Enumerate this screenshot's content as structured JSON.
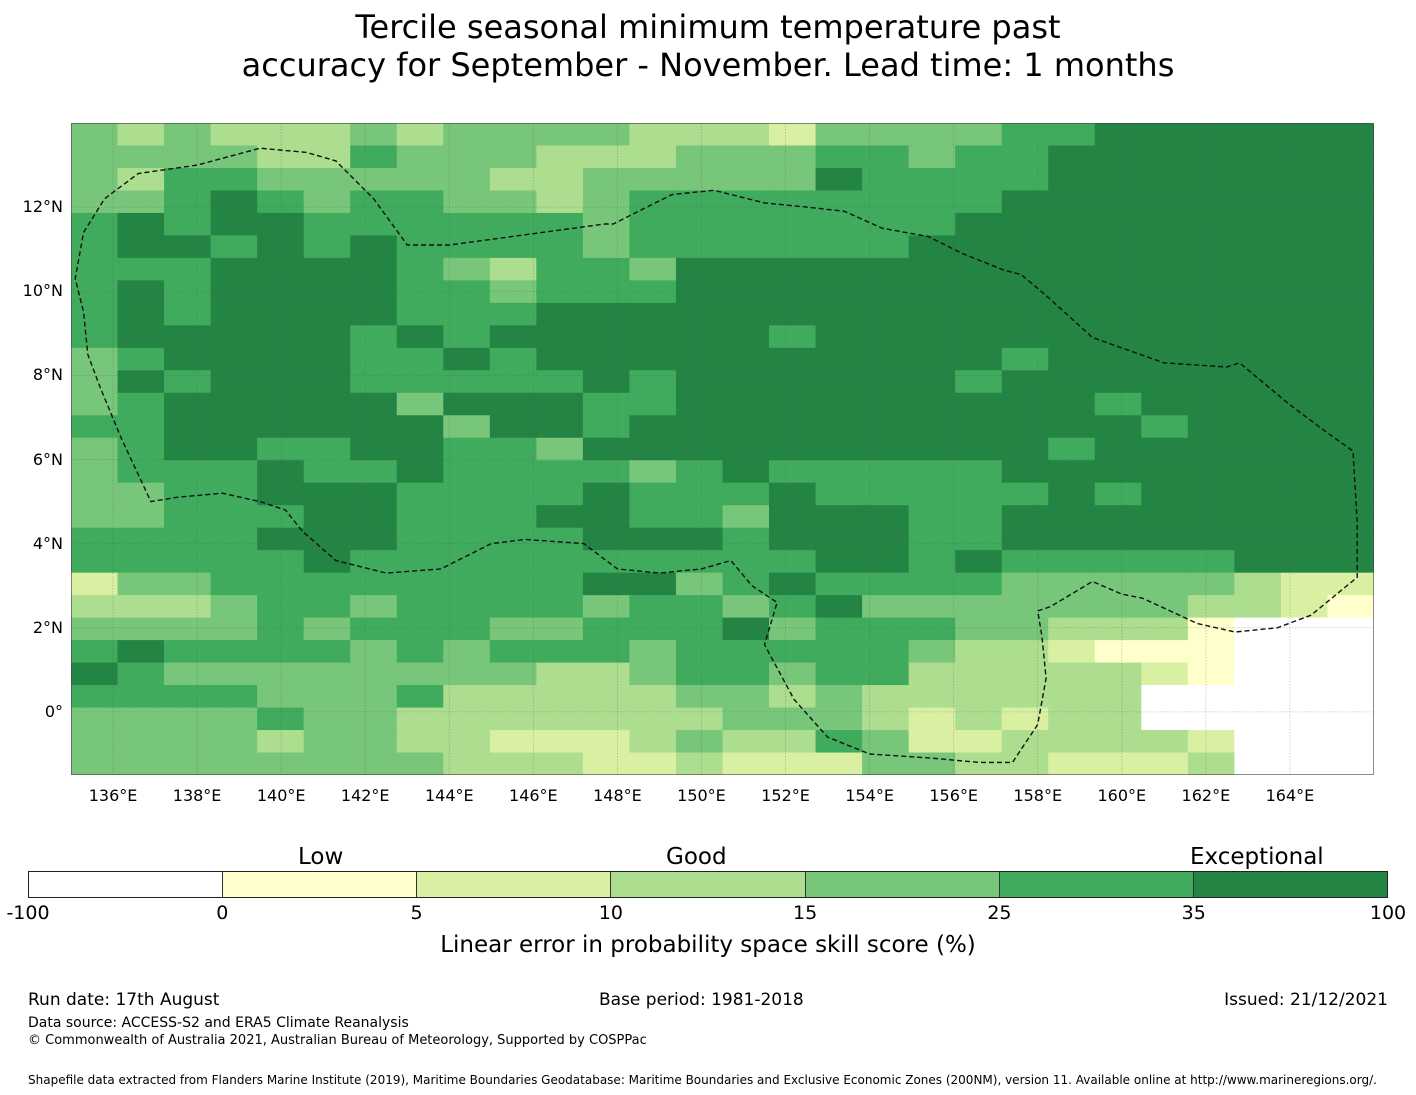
{
  "title": {
    "line1": "Tercile seasonal minimum temperature past",
    "line2": "accuracy for September - November. Lead time: 1 months"
  },
  "map": {
    "lon_range": [
      135.0,
      166.0
    ],
    "lat_range": [
      -1.5,
      14.0
    ],
    "lat_ticks": [
      {
        "value": 12,
        "label": "12°N"
      },
      {
        "value": 10,
        "label": "10°N"
      },
      {
        "value": 8,
        "label": "8°N"
      },
      {
        "value": 6,
        "label": "6°N"
      },
      {
        "value": 4,
        "label": "4°N"
      },
      {
        "value": 2,
        "label": "2°N"
      },
      {
        "value": 0,
        "label": "0°"
      }
    ],
    "lon_ticks": [
      {
        "value": 136,
        "label": "136°E"
      },
      {
        "value": 138,
        "label": "138°E"
      },
      {
        "value": 140,
        "label": "140°E"
      },
      {
        "value": 142,
        "label": "142°E"
      },
      {
        "value": 144,
        "label": "144°E"
      },
      {
        "value": 146,
        "label": "146°E"
      },
      {
        "value": 148,
        "label": "148°E"
      },
      {
        "value": 150,
        "label": "150°E"
      },
      {
        "value": 152,
        "label": "152°E"
      },
      {
        "value": 154,
        "label": "154°E"
      },
      {
        "value": 156,
        "label": "156°E"
      },
      {
        "value": 158,
        "label": "158°E"
      },
      {
        "value": 160,
        "label": "160°E"
      },
      {
        "value": 162,
        "label": "162°E"
      },
      {
        "value": 164,
        "label": "164°E"
      }
    ],
    "grid_cell_deg": 0.833,
    "color_classes": [
      "#ffffff",
      "#ffffcc",
      "#d9f0a3",
      "#addd8e",
      "#78c679",
      "#41ab5d",
      "#238443"
    ],
    "skill_class_grid": [
      "4343334344443332444455666666",
      "4444335444333444554556666666",
      "4355444443344444655556666666",
      "4456545544345555555566666666",
      "5656655555545555555666666666",
      "5665656555545555556666666666",
      "5556666543554666666666666666",
      "5656666554555666666666666666",
      "5656666555666666666666666666",
      "5666665656666665666666666666",
      "4566665565666666666656666666",
      "4656665555565666666566666666",
      "4566666466655666666666566666",
      "5566666646656666666666656666",
      "4566556655466666666665666666",
      "4555655655554565555566666666",
      "4455666555565556555556566666",
      "4455566555665546665566666666",
      "5555666555566656665566666666",
      "5555565555555555665655555666",
      "2445555555566456555544444322",
      "3334554555545545644444443321",
      "4444545554455564555443331000",
      "5655554545554555554332111000",
      "6544444444334554553333321000",
      "5555444533333443433333300000",
      "4444544333333344432323300000",
      "4444344332223433542233332000",
      "4444444433322322244332223000"
    ],
    "eez_outline": [
      [
        135.3,
        11.4
      ],
      [
        135.8,
        12.2
      ],
      [
        136.6,
        12.8
      ],
      [
        138.0,
        13.0
      ],
      [
        139.5,
        13.4
      ],
      [
        140.6,
        13.3
      ],
      [
        141.3,
        13.1
      ],
      [
        142.2,
        12.2
      ],
      [
        143.0,
        11.1
      ],
      [
        144.0,
        11.1
      ],
      [
        147.7,
        11.6
      ],
      [
        147.9,
        11.6
      ],
      [
        148.3,
        11.8
      ],
      [
        149.3,
        12.3
      ],
      [
        150.3,
        12.4
      ],
      [
        151.5,
        12.1
      ],
      [
        152.5,
        12.0
      ],
      [
        153.4,
        11.9
      ],
      [
        154.3,
        11.5
      ],
      [
        155.4,
        11.3
      ],
      [
        156.2,
        10.9
      ],
      [
        157.2,
        10.5
      ],
      [
        157.6,
        10.4
      ],
      [
        158.2,
        9.9
      ],
      [
        159.3,
        8.9
      ],
      [
        161.0,
        8.3
      ],
      [
        162.5,
        8.2
      ],
      [
        162.8,
        8.3
      ],
      [
        164.0,
        7.3
      ],
      [
        164.8,
        6.7
      ],
      [
        165.5,
        6.2
      ],
      [
        165.6,
        4.5
      ],
      [
        165.6,
        3.2
      ],
      [
        164.5,
        2.3
      ],
      [
        163.7,
        2.0
      ],
      [
        162.7,
        1.9
      ],
      [
        161.8,
        2.1
      ],
      [
        160.5,
        2.7
      ],
      [
        160.0,
        2.8
      ],
      [
        159.3,
        3.1
      ],
      [
        158.3,
        2.5
      ],
      [
        158.0,
        2.4
      ],
      [
        158.1,
        1.8
      ],
      [
        158.2,
        0.8
      ],
      [
        158.0,
        -0.3
      ],
      [
        157.4,
        -1.2
      ],
      [
        156.6,
        -1.2
      ],
      [
        155.5,
        -1.1
      ],
      [
        154.0,
        -1.0
      ],
      [
        153.0,
        -0.6
      ],
      [
        152.2,
        0.3
      ],
      [
        151.5,
        1.6
      ],
      [
        151.8,
        2.6
      ],
      [
        151.2,
        3.0
      ],
      [
        150.7,
        3.6
      ],
      [
        150.0,
        3.4
      ],
      [
        149.0,
        3.3
      ],
      [
        148.0,
        3.4
      ],
      [
        147.2,
        4.0
      ],
      [
        145.8,
        4.1
      ],
      [
        145.0,
        4.0
      ],
      [
        143.8,
        3.4
      ],
      [
        142.5,
        3.3
      ],
      [
        141.3,
        3.6
      ],
      [
        140.5,
        4.3
      ],
      [
        140.1,
        4.8
      ],
      [
        139.5,
        5.0
      ],
      [
        138.6,
        5.2
      ],
      [
        137.5,
        5.1
      ],
      [
        136.9,
        5.0
      ],
      [
        136.2,
        6.5
      ],
      [
        135.7,
        7.7
      ],
      [
        135.4,
        8.5
      ],
      [
        135.3,
        9.5
      ],
      [
        135.1,
        10.3
      ],
      [
        135.3,
        11.4
      ]
    ]
  },
  "colorbar": {
    "headings": {
      "low": "Low",
      "good": "Good",
      "exceptional": "Exceptional"
    },
    "bounds": [
      "-100",
      "0",
      "5",
      "10",
      "15",
      "25",
      "35",
      "100"
    ],
    "label": "Linear error in probability space skill score (%)"
  },
  "footer": {
    "run_date": "Run date: 17th August",
    "base_period": "Base period: 1981-2018",
    "issued": "Issued: 21/12/2021",
    "data_source": "Data source: ACCESS-S2 and ERA5 Climate Reanalysis",
    "copyright": "© Commonwealth of Australia 2021, Australian Bureau of Meteorology, Supported by COSPPac",
    "shapefile": "Shapefile data extracted from Flanders Marine Institute (2019), Maritime Boundaries Geodatabase: Maritime Boundaries and Exclusive Economic Zones (200NM), version 11. Available online at http://www.marineregions.org/."
  }
}
